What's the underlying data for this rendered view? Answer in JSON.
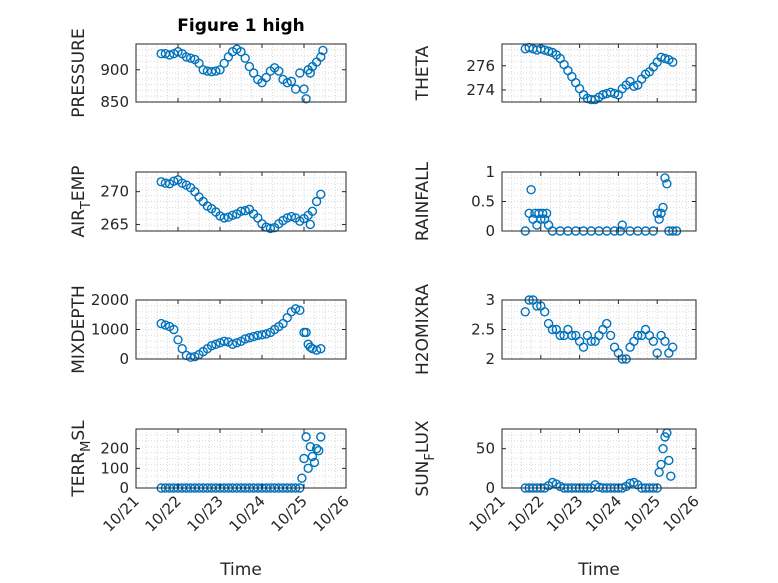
{
  "figure": {
    "title": "Figure 1 high"
  },
  "colors": {
    "marker": "#0072bd",
    "axis": "#262626",
    "grid": "#d8d8d8"
  },
  "chart_data": [
    {
      "id": "pressure",
      "type": "scatter",
      "title": "Figure 1 high",
      "ylabel": "PRESSURE",
      "ylabel_sub": "",
      "ylabel_tail": "",
      "xlim": [
        21,
        26
      ],
      "ylim": [
        850,
        940
      ],
      "yticks": [
        850,
        900
      ],
      "ytick_labels": [
        "850",
        "900"
      ],
      "xticks": [],
      "xtick_labels": [],
      "xlabel": "",
      "x": [
        21.6,
        21.7,
        21.8,
        21.9,
        22.0,
        22.1,
        22.2,
        22.3,
        22.4,
        22.5,
        22.6,
        22.7,
        22.8,
        22.9,
        23.0,
        23.1,
        23.2,
        23.3,
        23.4,
        23.5,
        23.6,
        23.7,
        23.8,
        23.9,
        24.0,
        24.1,
        24.2,
        24.3,
        24.4,
        24.5,
        24.6,
        24.7,
        24.8,
        24.9,
        25.0,
        25.05,
        25.1,
        25.15,
        25.2,
        25.3,
        25.4,
        25.45
      ],
      "y": [
        925,
        925,
        923,
        925,
        928,
        925,
        920,
        918,
        916,
        910,
        900,
        898,
        897,
        898,
        900,
        910,
        920,
        928,
        932,
        928,
        918,
        905,
        895,
        885,
        880,
        888,
        898,
        903,
        898,
        885,
        880,
        882,
        870,
        895,
        870,
        855,
        900,
        895,
        905,
        912,
        920,
        930
      ]
    },
    {
      "id": "theta",
      "type": "scatter",
      "ylabel": "THETA",
      "ylabel_sub": "",
      "ylabel_tail": "",
      "xlim": [
        21,
        26
      ],
      "ylim": [
        273,
        277.8
      ],
      "yticks": [
        274,
        276
      ],
      "ytick_labels": [
        "274",
        "276"
      ],
      "xticks": [],
      "xtick_labels": [],
      "xlabel": "",
      "x": [
        21.6,
        21.7,
        21.8,
        21.9,
        22.0,
        22.1,
        22.2,
        22.3,
        22.4,
        22.5,
        22.6,
        22.7,
        22.8,
        22.9,
        23.0,
        23.1,
        23.2,
        23.3,
        23.4,
        23.5,
        23.6,
        23.7,
        23.8,
        23.9,
        24.0,
        24.1,
        24.2,
        24.3,
        24.4,
        24.5,
        24.6,
        24.7,
        24.8,
        24.9,
        25.0,
        25.1,
        25.2,
        25.3,
        25.4
      ],
      "y": [
        277.4,
        277.5,
        277.4,
        277.3,
        277.4,
        277.3,
        277.2,
        277.1,
        276.9,
        276.6,
        276.1,
        275.6,
        275.1,
        274.6,
        274.1,
        273.6,
        273.3,
        273.2,
        273.2,
        273.4,
        273.6,
        273.7,
        273.8,
        273.7,
        273.6,
        274.1,
        274.4,
        274.7,
        274.3,
        274.4,
        274.9,
        275.3,
        275.5,
        275.9,
        276.3,
        276.7,
        276.6,
        276.5,
        276.3
      ]
    },
    {
      "id": "air_temp",
      "type": "scatter",
      "ylabel": "AIR",
      "ylabel_sub": "T",
      "ylabel_tail": "EMP",
      "xlim": [
        21,
        26
      ],
      "ylim": [
        264,
        273
      ],
      "yticks": [
        265,
        270
      ],
      "ytick_labels": [
        "265",
        "270"
      ],
      "xticks": [],
      "xtick_labels": [],
      "xlabel": "",
      "x": [
        21.6,
        21.7,
        21.8,
        21.9,
        22.0,
        22.1,
        22.2,
        22.3,
        22.4,
        22.5,
        22.6,
        22.7,
        22.8,
        22.9,
        23.0,
        23.1,
        23.2,
        23.3,
        23.4,
        23.5,
        23.6,
        23.7,
        23.8,
        23.9,
        24.0,
        24.1,
        24.2,
        24.3,
        24.4,
        24.5,
        24.6,
        24.7,
        24.8,
        24.9,
        25.0,
        25.1,
        25.15,
        25.2,
        25.3,
        25.4
      ],
      "y": [
        271.5,
        271.3,
        271.2,
        271.6,
        271.8,
        271.3,
        271.0,
        270.6,
        270.0,
        269.2,
        268.5,
        267.8,
        267.4,
        266.9,
        266.3,
        266.0,
        266.1,
        266.4,
        266.6,
        267.0,
        267.1,
        267.3,
        266.6,
        266.0,
        265.1,
        264.6,
        264.4,
        264.5,
        265.1,
        265.6,
        266.0,
        266.2,
        266.0,
        265.5,
        265.9,
        266.4,
        265.0,
        267.0,
        268.5,
        269.6
      ]
    },
    {
      "id": "rainfall",
      "type": "scatter",
      "ylabel": "RAINFALL",
      "ylabel_sub": "",
      "ylabel_tail": "",
      "xlim": [
        21,
        26
      ],
      "ylim": [
        0,
        1
      ],
      "yticks": [
        0,
        0.5,
        1
      ],
      "ytick_labels": [
        "0",
        "0.5",
        "1"
      ],
      "xticks": [],
      "xtick_labels": [],
      "xlabel": "",
      "x": [
        21.6,
        21.7,
        21.75,
        21.8,
        21.85,
        21.9,
        21.95,
        22.0,
        22.05,
        22.1,
        22.15,
        22.2,
        22.3,
        22.5,
        22.7,
        22.9,
        23.1,
        23.3,
        23.5,
        23.7,
        23.9,
        24.05,
        24.1,
        24.3,
        24.5,
        24.7,
        24.9,
        25.0,
        25.05,
        25.1,
        25.15,
        25.2,
        25.25,
        25.3,
        25.4,
        25.5
      ],
      "y": [
        0,
        0.3,
        0.7,
        0.2,
        0.3,
        0.1,
        0.3,
        0.2,
        0.3,
        0.2,
        0.3,
        0.1,
        0,
        0,
        0,
        0,
        0,
        0,
        0,
        0,
        0,
        0,
        0.1,
        0,
        0,
        0,
        0,
        0.3,
        0.2,
        0.3,
        0.4,
        0.9,
        0.8,
        0,
        0,
        0
      ]
    },
    {
      "id": "mixdepth",
      "type": "scatter",
      "ylabel": "MIXDEPTH",
      "ylabel_sub": "",
      "ylabel_tail": "",
      "xlim": [
        21,
        26
      ],
      "ylim": [
        0,
        2000
      ],
      "yticks": [
        0,
        1000,
        2000
      ],
      "ytick_labels": [
        "0",
        "1000",
        "2000"
      ],
      "xticks": [],
      "xtick_labels": [],
      "xlabel": "",
      "x": [
        21.6,
        21.7,
        21.8,
        21.9,
        22.0,
        22.1,
        22.2,
        22.3,
        22.4,
        22.5,
        22.6,
        22.7,
        22.8,
        22.9,
        23.0,
        23.1,
        23.2,
        23.3,
        23.4,
        23.5,
        23.6,
        23.7,
        23.8,
        23.9,
        24.0,
        24.1,
        24.2,
        24.3,
        24.4,
        24.5,
        24.6,
        24.7,
        24.8,
        24.9,
        25.0,
        25.05,
        25.1,
        25.15,
        25.2,
        25.3,
        25.4
      ],
      "y": [
        1200,
        1150,
        1100,
        1000,
        650,
        350,
        120,
        60,
        80,
        150,
        250,
        350,
        450,
        500,
        550,
        600,
        580,
        500,
        550,
        600,
        680,
        720,
        760,
        800,
        820,
        850,
        900,
        1000,
        1100,
        1200,
        1400,
        1600,
        1700,
        1650,
        900,
        900,
        500,
        400,
        350,
        300,
        350
      ]
    },
    {
      "id": "h2omixra",
      "type": "scatter",
      "ylabel": "H2OMIXRA",
      "ylabel_sub": "",
      "ylabel_tail": "",
      "xlim": [
        21,
        26
      ],
      "ylim": [
        2,
        3
      ],
      "yticks": [
        2,
        2.5,
        3
      ],
      "ytick_labels": [
        "2",
        "2.5",
        "3"
      ],
      "xticks": [],
      "xtick_labels": [],
      "xlabel": "",
      "x": [
        21.6,
        21.7,
        21.8,
        21.9,
        22.0,
        22.1,
        22.2,
        22.3,
        22.4,
        22.5,
        22.6,
        22.7,
        22.8,
        22.9,
        23.0,
        23.1,
        23.2,
        23.3,
        23.4,
        23.5,
        23.6,
        23.7,
        23.8,
        23.9,
        24.0,
        24.1,
        24.2,
        24.3,
        24.4,
        24.5,
        24.6,
        24.7,
        24.8,
        24.9,
        25.0,
        25.1,
        25.2,
        25.3,
        25.4
      ],
      "y": [
        2.8,
        3.0,
        3.0,
        2.9,
        2.9,
        2.8,
        2.6,
        2.5,
        2.5,
        2.4,
        2.4,
        2.5,
        2.4,
        2.4,
        2.3,
        2.2,
        2.4,
        2.3,
        2.3,
        2.4,
        2.5,
        2.6,
        2.4,
        2.2,
        2.1,
        2.0,
        2.0,
        2.2,
        2.3,
        2.4,
        2.4,
        2.5,
        2.4,
        2.3,
        2.1,
        2.4,
        2.3,
        2.1,
        2.2
      ]
    },
    {
      "id": "terr_msl",
      "type": "scatter",
      "ylabel": "TERR",
      "ylabel_sub": "M",
      "ylabel_tail": "SL",
      "xlim": [
        21,
        26
      ],
      "ylim": [
        0,
        300
      ],
      "yticks": [
        0,
        100,
        200
      ],
      "ytick_labels": [
        "0",
        "100",
        "200"
      ],
      "xticks": [
        21,
        22,
        23,
        24,
        25,
        26
      ],
      "xtick_labels": [
        "10/21",
        "10/22",
        "10/23",
        "10/24",
        "10/25",
        "10/26"
      ],
      "xlabel": "Time",
      "x": [
        21.6,
        21.7,
        21.8,
        21.9,
        22.0,
        22.1,
        22.2,
        22.3,
        22.4,
        22.5,
        22.6,
        22.7,
        22.8,
        22.9,
        23.0,
        23.1,
        23.2,
        23.3,
        23.4,
        23.5,
        23.6,
        23.7,
        23.8,
        23.9,
        24.0,
        24.1,
        24.2,
        24.3,
        24.4,
        24.5,
        24.6,
        24.7,
        24.8,
        24.9,
        24.95,
        25.0,
        25.05,
        25.1,
        25.15,
        25.2,
        25.25,
        25.3,
        25.35,
        25.4
      ],
      "y": [
        0,
        0,
        0,
        0,
        0,
        0,
        0,
        0,
        0,
        0,
        0,
        0,
        0,
        0,
        0,
        0,
        0,
        0,
        0,
        0,
        0,
        0,
        0,
        0,
        0,
        0,
        0,
        0,
        0,
        0,
        0,
        0,
        0,
        0,
        50,
        150,
        260,
        100,
        210,
        160,
        130,
        200,
        190,
        260
      ]
    },
    {
      "id": "sun_flux",
      "type": "scatter",
      "ylabel": "SUN",
      "ylabel_sub": "F",
      "ylabel_tail": "LUX",
      "xlim": [
        21,
        26
      ],
      "ylim": [
        0,
        75
      ],
      "yticks": [
        0,
        50
      ],
      "ytick_labels": [
        "0",
        "50"
      ],
      "xticks": [
        21,
        22,
        23,
        24,
        25,
        26
      ],
      "xtick_labels": [
        "10/21",
        "10/22",
        "10/23",
        "10/24",
        "10/25",
        "10/26"
      ],
      "xlabel": "Time",
      "x": [
        21.6,
        21.7,
        21.8,
        21.9,
        22.0,
        22.1,
        22.2,
        22.3,
        22.4,
        22.5,
        22.6,
        22.7,
        22.8,
        22.9,
        23.0,
        23.1,
        23.2,
        23.3,
        23.4,
        23.5,
        23.6,
        23.7,
        23.8,
        23.9,
        24.0,
        24.1,
        24.2,
        24.3,
        24.4,
        24.5,
        24.6,
        24.7,
        24.8,
        24.9,
        25.0,
        25.05,
        25.1,
        25.15,
        25.2,
        25.25,
        25.3,
        25.35
      ],
      "y": [
        0,
        0,
        0,
        0,
        0,
        0,
        3,
        7,
        5,
        2,
        0,
        0,
        0,
        0,
        0,
        0,
        0,
        0,
        4,
        1,
        0,
        0,
        0,
        0,
        0,
        0,
        2,
        6,
        7,
        4,
        0,
        0,
        0,
        0,
        0,
        20,
        30,
        50,
        65,
        70,
        35,
        15
      ]
    }
  ]
}
